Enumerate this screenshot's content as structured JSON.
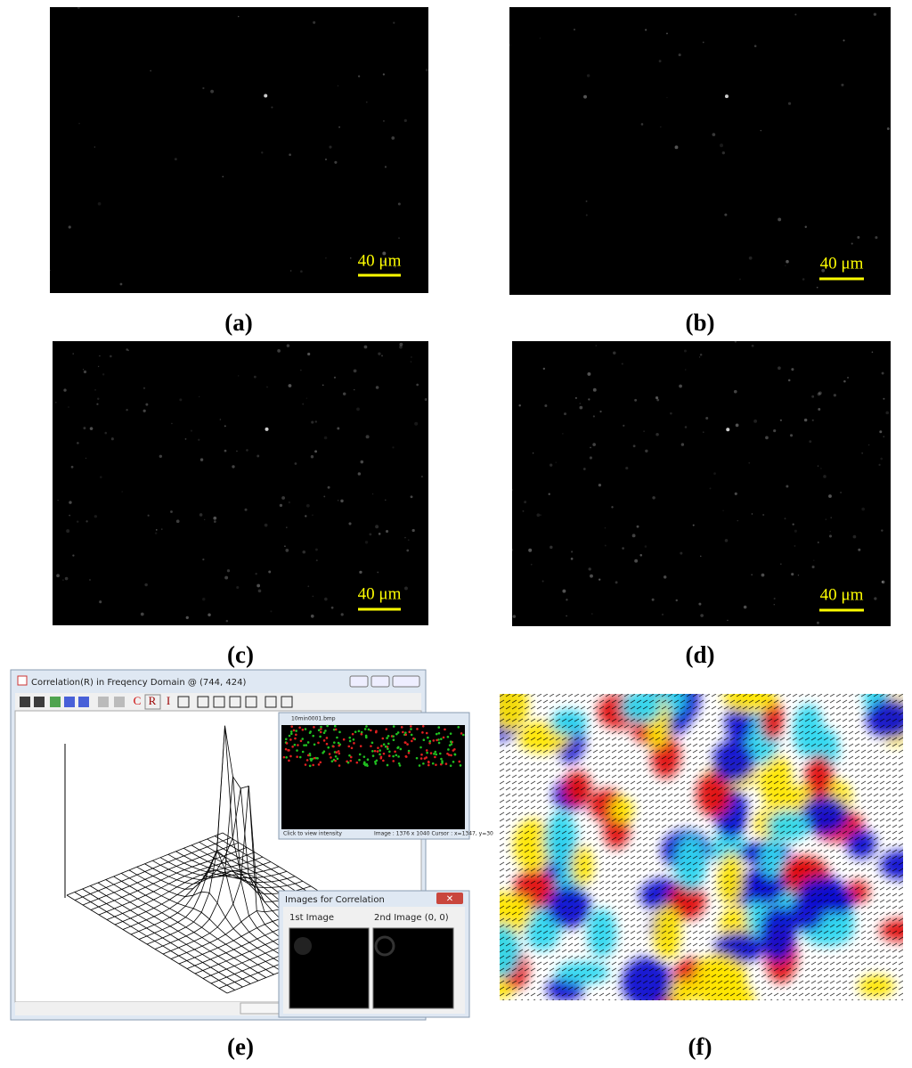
{
  "panels": [
    {
      "label": "(a)",
      "scale_bar": "40 μm"
    },
    {
      "label": "(b)",
      "scale_bar": "40 μm"
    },
    {
      "label": "(c)",
      "scale_bar": "40 μm"
    },
    {
      "label": "(d)",
      "scale_bar": "40 μm"
    },
    {
      "label": "(e)"
    },
    {
      "label": "(f)"
    }
  ],
  "window": {
    "title": "Correlation(R) in Freqency Domain @ (744, 424)",
    "toolbar": [
      "C",
      "R",
      "I"
    ],
    "image_window": {
      "title": "10min0001.bmp",
      "status_left": "Click to view intensity",
      "status_right": "Image : 1376 x 1040  Cursor : x=1347, y=30"
    },
    "correlation_window": {
      "title": "Images for Correlation",
      "first": "1st Image",
      "second": "2nd Image (0, 0)"
    }
  }
}
